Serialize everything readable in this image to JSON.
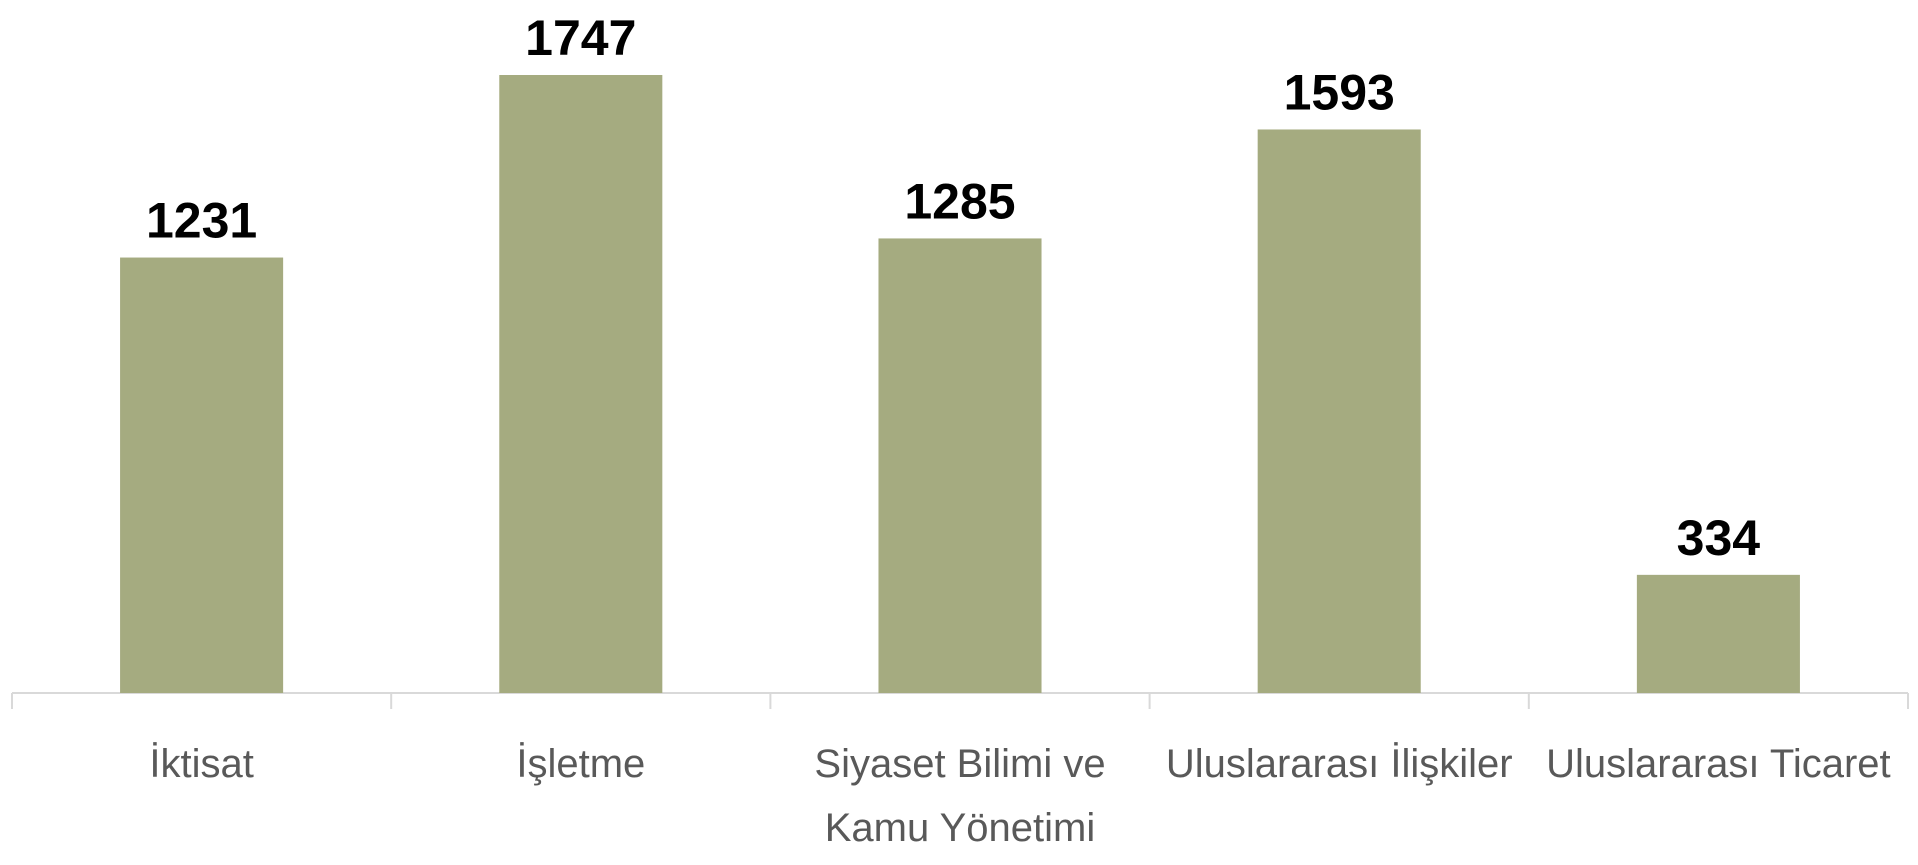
{
  "chart_data": {
    "type": "bar",
    "categories": [
      "İktisat",
      "İşletme",
      "Siyaset Bilimi ve Kamu Yönetimi",
      "Uluslararası İlişkiler",
      "Uluslararası Ticaret"
    ],
    "values": [
      1231,
      1747,
      1285,
      1593,
      334
    ],
    "color": "#a5ab80"
  }
}
